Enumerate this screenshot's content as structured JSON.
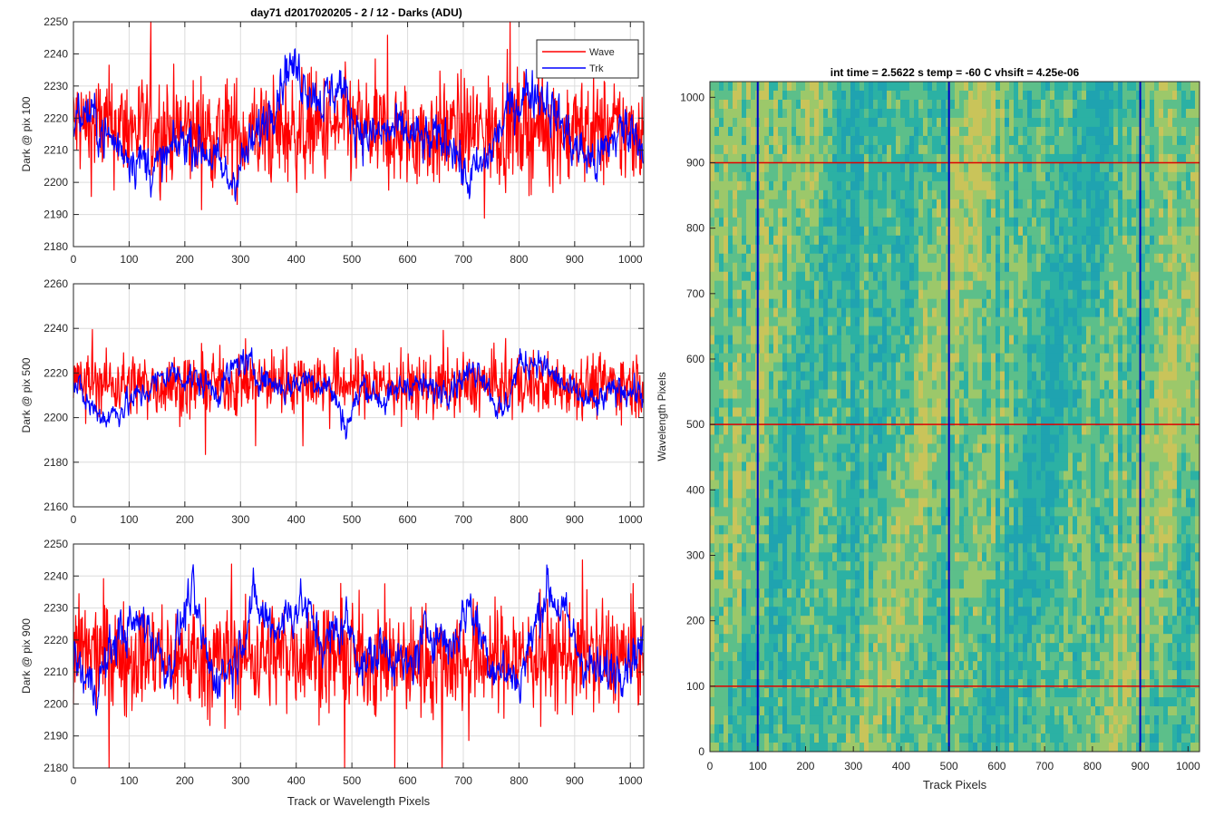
{
  "figure": {
    "title": "day71 d2017020205 - 2 / 12 - Darks (ADU)"
  },
  "chart_data": [
    {
      "type": "line",
      "ylabel": "Dark @ pix 100",
      "xlabel": "",
      "xlim": [
        0,
        1024
      ],
      "ylim": [
        2180,
        2250
      ],
      "xticks": [
        0,
        100,
        200,
        300,
        400,
        500,
        600,
        700,
        800,
        900,
        1000
      ],
      "yticks": [
        2180,
        2190,
        2200,
        2210,
        2220,
        2230,
        2240,
        2250
      ],
      "grid": true,
      "legend": {
        "placement": "top-right",
        "entries": [
          "Wave",
          "Trk"
        ]
      },
      "series": [
        {
          "name": "Wave",
          "color": "#ff0000",
          "mean": 2216,
          "noise": 8.5,
          "min": 2181,
          "max": 2250,
          "x": [
            0,
            100,
            200,
            300,
            400,
            500,
            600,
            700,
            800,
            900,
            1024
          ],
          "values": [
            2218,
            2217,
            2216,
            2215,
            2216,
            2217,
            2214,
            2216,
            2217,
            2216,
            2216
          ]
        },
        {
          "name": "Trk",
          "color": "#0000ff",
          "noise": 4,
          "x": [
            0,
            25,
            60,
            110,
            150,
            200,
            240,
            280,
            330,
            360,
            385,
            410,
            450,
            480,
            500,
            530,
            570,
            600,
            640,
            680,
            705,
            740,
            780,
            820,
            845,
            870,
            900,
            940,
            970,
            1000,
            1024
          ],
          "values": [
            2220,
            2222,
            2214,
            2208,
            2204,
            2214,
            2210,
            2200,
            2214,
            2226,
            2237,
            2233,
            2225,
            2231,
            2220,
            2214,
            2216,
            2215,
            2212,
            2214,
            2200,
            2206,
            2222,
            2229,
            2227,
            2220,
            2211,
            2206,
            2214,
            2218,
            2212
          ]
        }
      ]
    },
    {
      "type": "line",
      "ylabel": "Dark @ pix 500",
      "xlabel": "",
      "xlim": [
        0,
        1024
      ],
      "ylim": [
        2160,
        2260
      ],
      "xticks": [
        0,
        100,
        200,
        300,
        400,
        500,
        600,
        700,
        800,
        900,
        1000
      ],
      "yticks": [
        2160,
        2180,
        2200,
        2220,
        2240,
        2260
      ],
      "grid": true,
      "series": [
        {
          "name": "Wave",
          "color": "#ff0000",
          "mean": 2215,
          "noise": 7,
          "min": 2180,
          "max": 2244,
          "x": [
            0,
            200,
            400,
            600,
            800,
            1024
          ],
          "values": [
            2216,
            2214,
            2217,
            2214,
            2215,
            2215
          ]
        },
        {
          "name": "Trk",
          "color": "#0000ff",
          "noise": 3.5,
          "x": [
            0,
            30,
            60,
            120,
            170,
            210,
            260,
            300,
            340,
            380,
            420,
            460,
            490,
            520,
            560,
            600,
            650,
            700,
            730,
            770,
            800,
            830,
            860,
            900,
            940,
            980,
            1024
          ],
          "values": [
            2215,
            2205,
            2200,
            2210,
            2220,
            2218,
            2212,
            2226,
            2218,
            2213,
            2218,
            2214,
            2196,
            2215,
            2207,
            2216,
            2212,
            2218,
            2223,
            2200,
            2224,
            2226,
            2219,
            2210,
            2206,
            2214,
            2210
          ]
        }
      ]
    },
    {
      "type": "line",
      "ylabel": "Dark @ pix 900",
      "xlabel": "Track or Wavelength Pixels",
      "xlim": [
        0,
        1024
      ],
      "ylim": [
        2180,
        2250
      ],
      "xticks": [
        0,
        100,
        200,
        300,
        400,
        500,
        600,
        700,
        800,
        900,
        1000
      ],
      "yticks": [
        2180,
        2190,
        2200,
        2210,
        2220,
        2230,
        2240,
        2250
      ],
      "grid": true,
      "series": [
        {
          "name": "Wave",
          "color": "#ff0000",
          "mean": 2215,
          "noise": 8.5,
          "min": 2180,
          "max": 2245,
          "x": [
            0,
            200,
            400,
            600,
            800,
            1024
          ],
          "values": [
            2216,
            2214,
            2216,
            2213,
            2215,
            2215
          ]
        },
        {
          "name": "Trk",
          "color": "#0000ff",
          "noise": 4,
          "x": [
            0,
            20,
            40,
            80,
            130,
            170,
            210,
            250,
            290,
            320,
            360,
            410,
            450,
            490,
            520,
            560,
            600,
            640,
            680,
            710,
            750,
            800,
            850,
            880,
            910,
            950,
            990,
            1024
          ],
          "values": [
            2215,
            2208,
            2205,
            2222,
            2226,
            2210,
            2235,
            2208,
            2213,
            2232,
            2224,
            2232,
            2218,
            2226,
            2212,
            2218,
            2210,
            2224,
            2218,
            2232,
            2213,
            2207,
            2237,
            2228,
            2215,
            2208,
            2214,
            2218
          ]
        }
      ]
    },
    {
      "type": "heatmap",
      "title": "int time = 2.5622 s    temp = -60 C    vhsift = 4.25e-06",
      "xlabel": "Track Pixels",
      "ylabel": "Wavelength Pixels",
      "xlim": [
        0,
        1024
      ],
      "ylim": [
        0,
        1024
      ],
      "xticks": [
        0,
        100,
        200,
        300,
        400,
        500,
        600,
        700,
        800,
        900,
        1000
      ],
      "yticks": [
        0,
        100,
        200,
        300,
        400,
        500,
        600,
        700,
        800,
        900,
        1000
      ],
      "colormap": [
        "#1fa3b0",
        "#2bb1a4",
        "#5cbf8a",
        "#9cc86a",
        "#c9c45a"
      ],
      "hlines": {
        "color": "#e00000",
        "values": [
          100,
          500,
          900
        ]
      },
      "vlines": {
        "color": "#0000c0",
        "values": [
          100,
          500,
          900
        ]
      }
    }
  ]
}
